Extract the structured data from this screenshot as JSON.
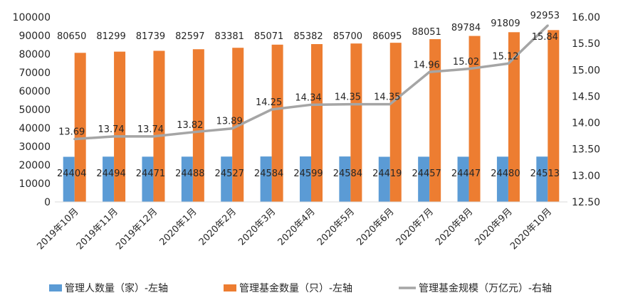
{
  "chart_data": {
    "type": "bar",
    "categories": [
      "2019年10月",
      "2019年11月",
      "2019年12月",
      "2020年1月",
      "2020年2月",
      "2020年3月",
      "2020年4月",
      "2020年5月",
      "2020年6月",
      "2020年7月",
      "2020年8月",
      "2020年9月",
      "2020年10月"
    ],
    "series": [
      {
        "name": "管理人数量（家）-左轴",
        "type": "bar",
        "axis": "left",
        "color": "#5b9bd5",
        "values": [
          24404,
          24494,
          24471,
          24488,
          24527,
          24584,
          24599,
          24584,
          24419,
          24457,
          24447,
          24480,
          24513
        ],
        "labels": [
          "24404",
          "24494",
          "24471",
          "24488",
          "24527",
          "24584",
          "24599",
          "24584",
          "24419",
          "24457",
          "24447",
          "24480",
          "24513"
        ]
      },
      {
        "name": "管理基金数量（只）-左轴",
        "type": "bar",
        "axis": "left",
        "color": "#ed7d31",
        "values": [
          80650,
          81299,
          81739,
          82597,
          83381,
          85071,
          85382,
          85700,
          86095,
          88051,
          89784,
          91809,
          92953
        ],
        "labels": [
          "80650",
          "81299",
          "81739",
          "82597",
          "83381",
          "85071",
          "85382",
          "85700",
          "86095",
          "88051",
          "89784",
          "91809",
          "92953"
        ]
      },
      {
        "name": "管理基金规模（万亿元）-右轴",
        "type": "line",
        "axis": "right",
        "color": "#a5a5a5",
        "values": [
          13.69,
          13.74,
          13.74,
          13.82,
          13.89,
          14.25,
          14.34,
          14.35,
          14.35,
          14.96,
          15.02,
          15.12,
          15.84
        ],
        "labels": [
          "13.69",
          "13.74",
          "13.74",
          "13.82",
          "13.89",
          "14.25",
          "14.34",
          "14.35",
          "14.35",
          "14.96",
          "15.02",
          "15.12",
          "15.84"
        ]
      }
    ],
    "y_left": {
      "ylim": [
        0,
        100000
      ],
      "ticks": [
        "0",
        "10000",
        "20000",
        "30000",
        "40000",
        "50000",
        "60000",
        "70000",
        "80000",
        "90000",
        "100000"
      ]
    },
    "y_right": {
      "ylim": [
        12.5,
        16.0
      ],
      "ticks": [
        "12.50",
        "13.00",
        "13.50",
        "14.00",
        "14.50",
        "15.00",
        "15.50",
        "16.00"
      ]
    },
    "legend_position": "bottom",
    "grid": false,
    "title": "",
    "xlabel": "",
    "ylabel": ""
  }
}
